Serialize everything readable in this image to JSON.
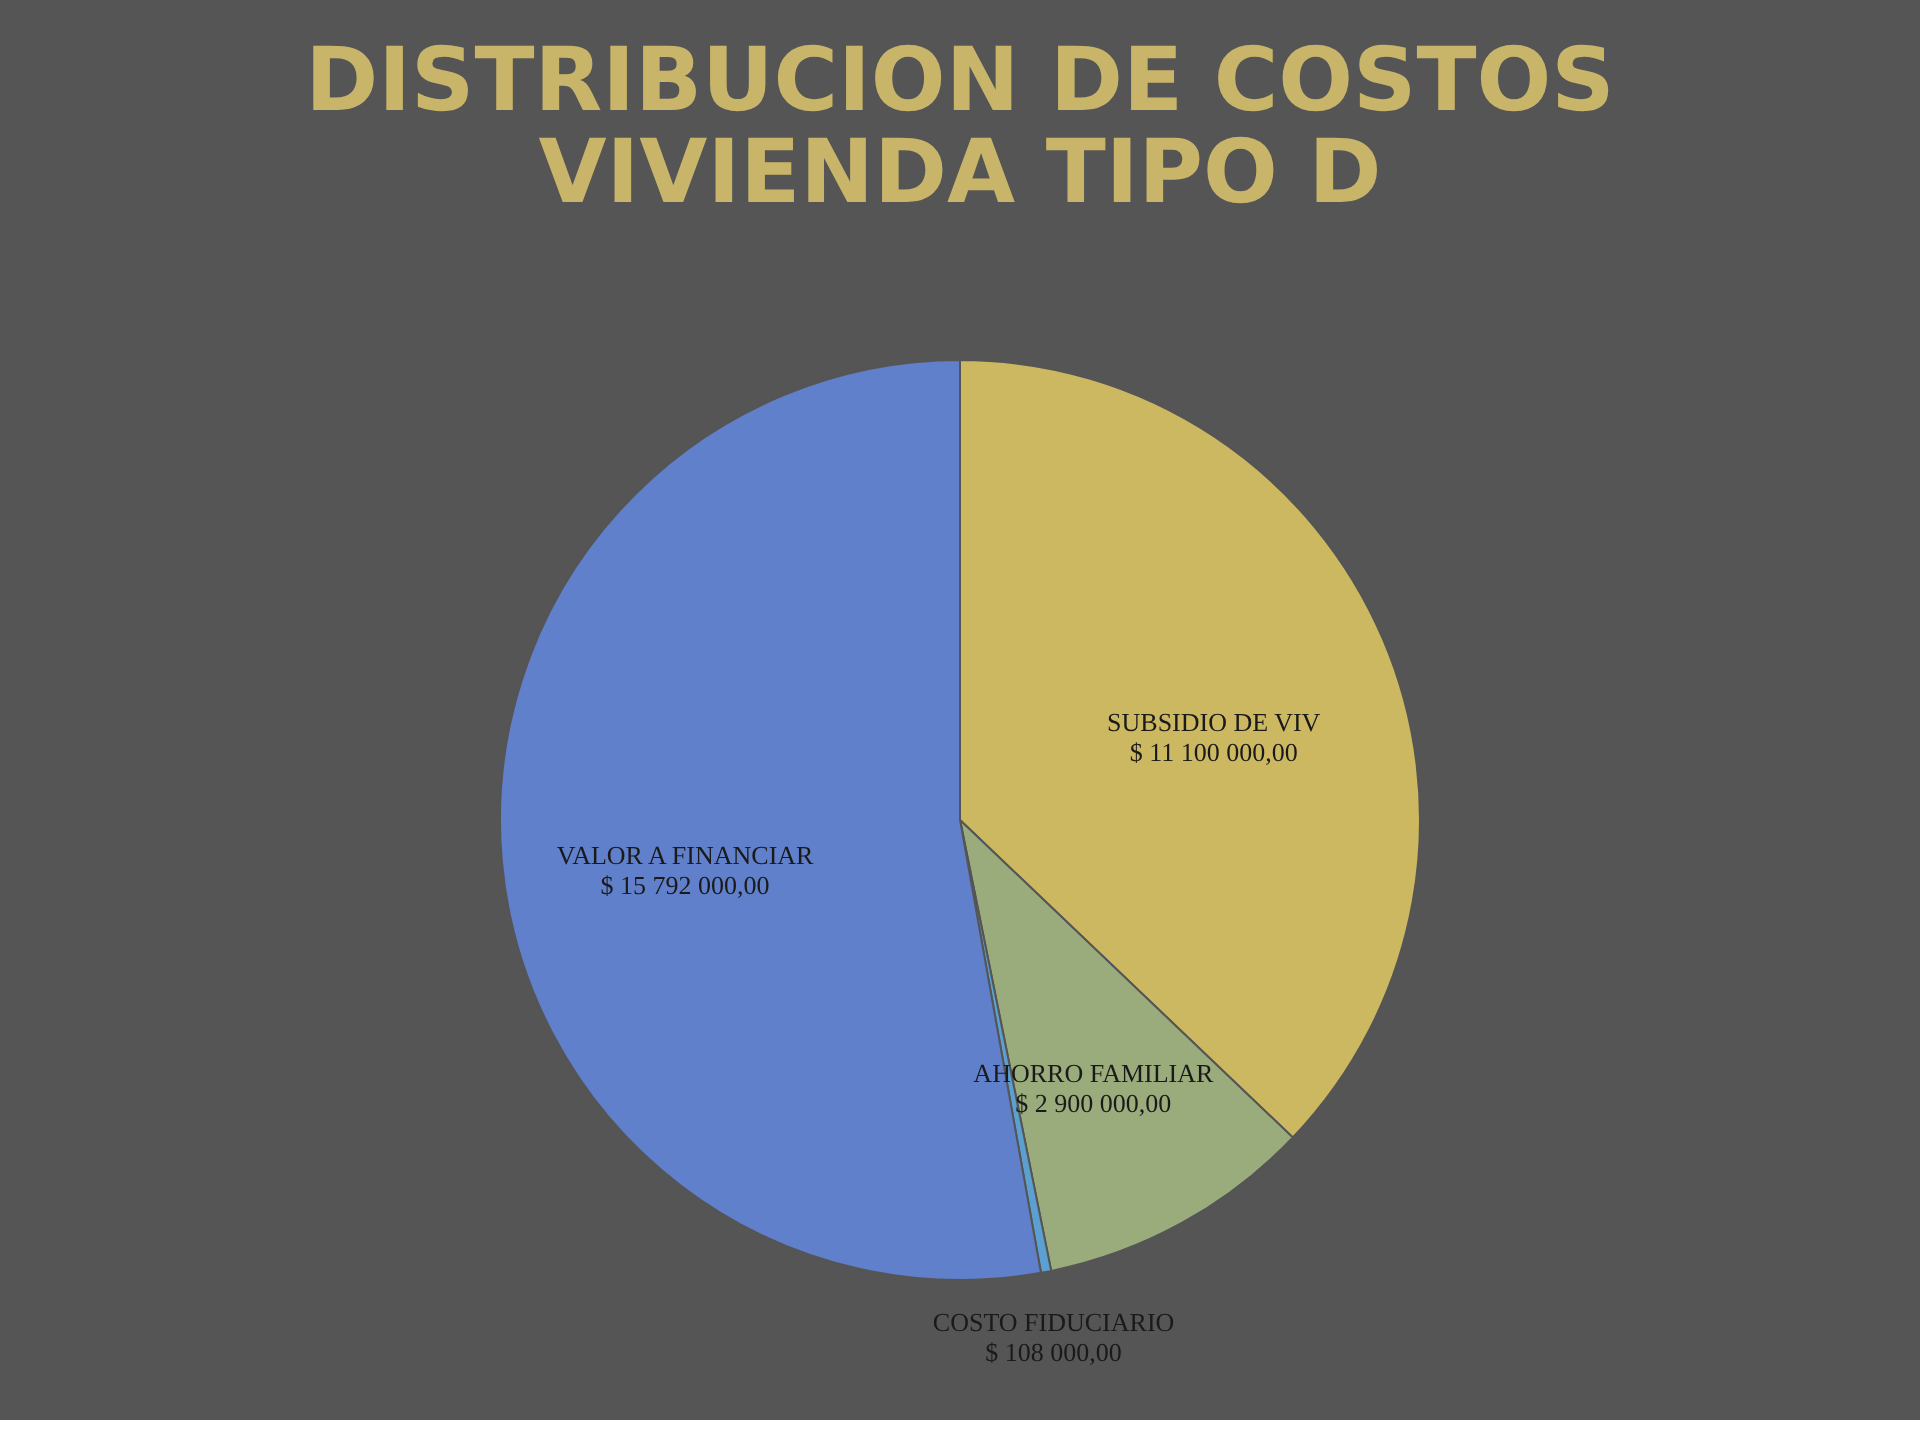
{
  "chart_data": {
    "type": "pie",
    "title": "DISTRIBUCION DE COSTOS VIVIENDA TIPO D",
    "categories": [
      "SUBSIDIO  DE VIV",
      "AHORRO  FAMILIAR",
      "COSTO FIDUCIARIO",
      "VALOR  A FINANCIAR"
    ],
    "values": [
      11100000,
      2900000,
      108000,
      15792000
    ],
    "value_labels": [
      "$ 11 100 000,00",
      "$ 2 900 000,00",
      "$ 108 000,00",
      "$ 15 792 000,00"
    ],
    "colors": [
      "#cdb862",
      "#9aab7c",
      "#5ba0d0",
      "#6080cc"
    ],
    "legend": false
  }
}
